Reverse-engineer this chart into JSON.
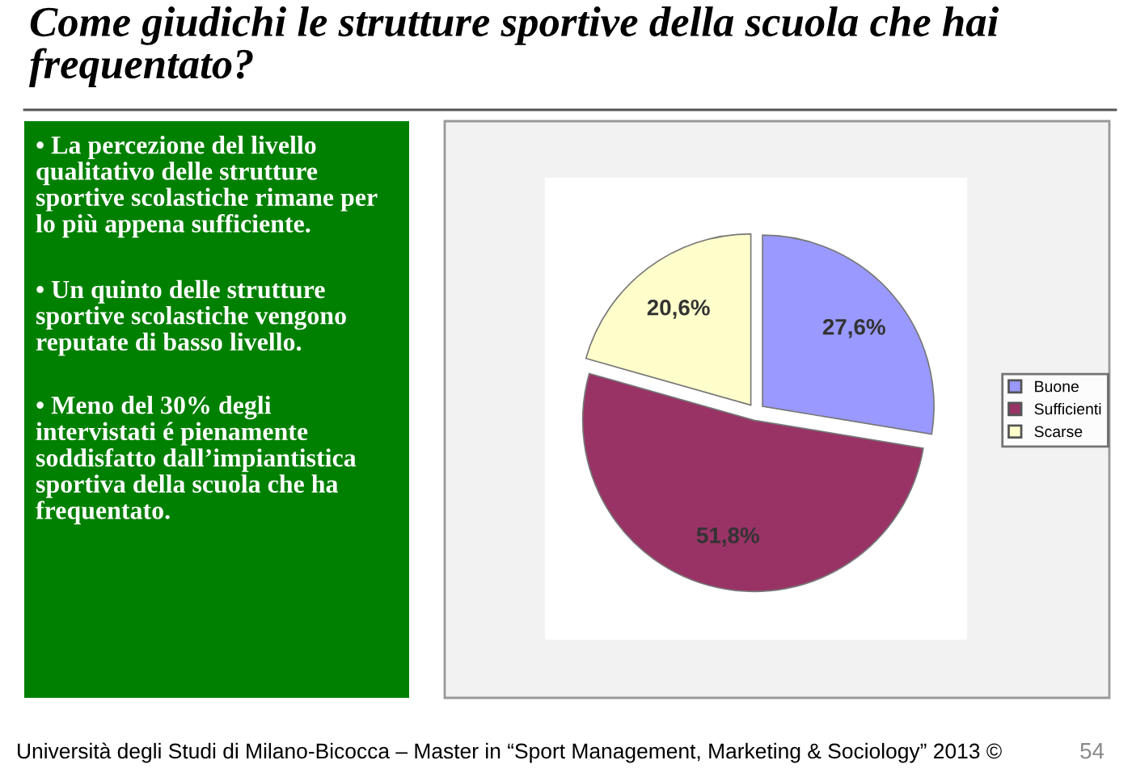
{
  "chart_data": {
    "type": "pie",
    "title": "Come giudichi le strutture sportive della scuola che hai frequentato?",
    "categories": [
      "Buone",
      "Sufficienti",
      "Scarse"
    ],
    "values": [
      27.6,
      51.8,
      20.6
    ],
    "colors": [
      "#9999ff",
      "#993366",
      "#ffffcc"
    ],
    "value_labels": [
      "27,6%",
      "51,8%",
      "20,6%"
    ],
    "legend": "right",
    "annotations": [
      "• La percezione del livello qualitativo delle strutture sportive scolastiche rimane per lo più appena sufficiente.",
      "• Un quinto delle strutture sportive scolastiche vengono reputate di basso livello.",
      "• Meno del 30% degli intervistati é pienamente soddisfatto dall’impiantistica sportiva della scuola che ha frequentato.",
      "Università degli Studi di Milano-Bicocca – Master in “Sport Management, Marketing & Sociology” 2013 ©",
      "54"
    ]
  }
}
